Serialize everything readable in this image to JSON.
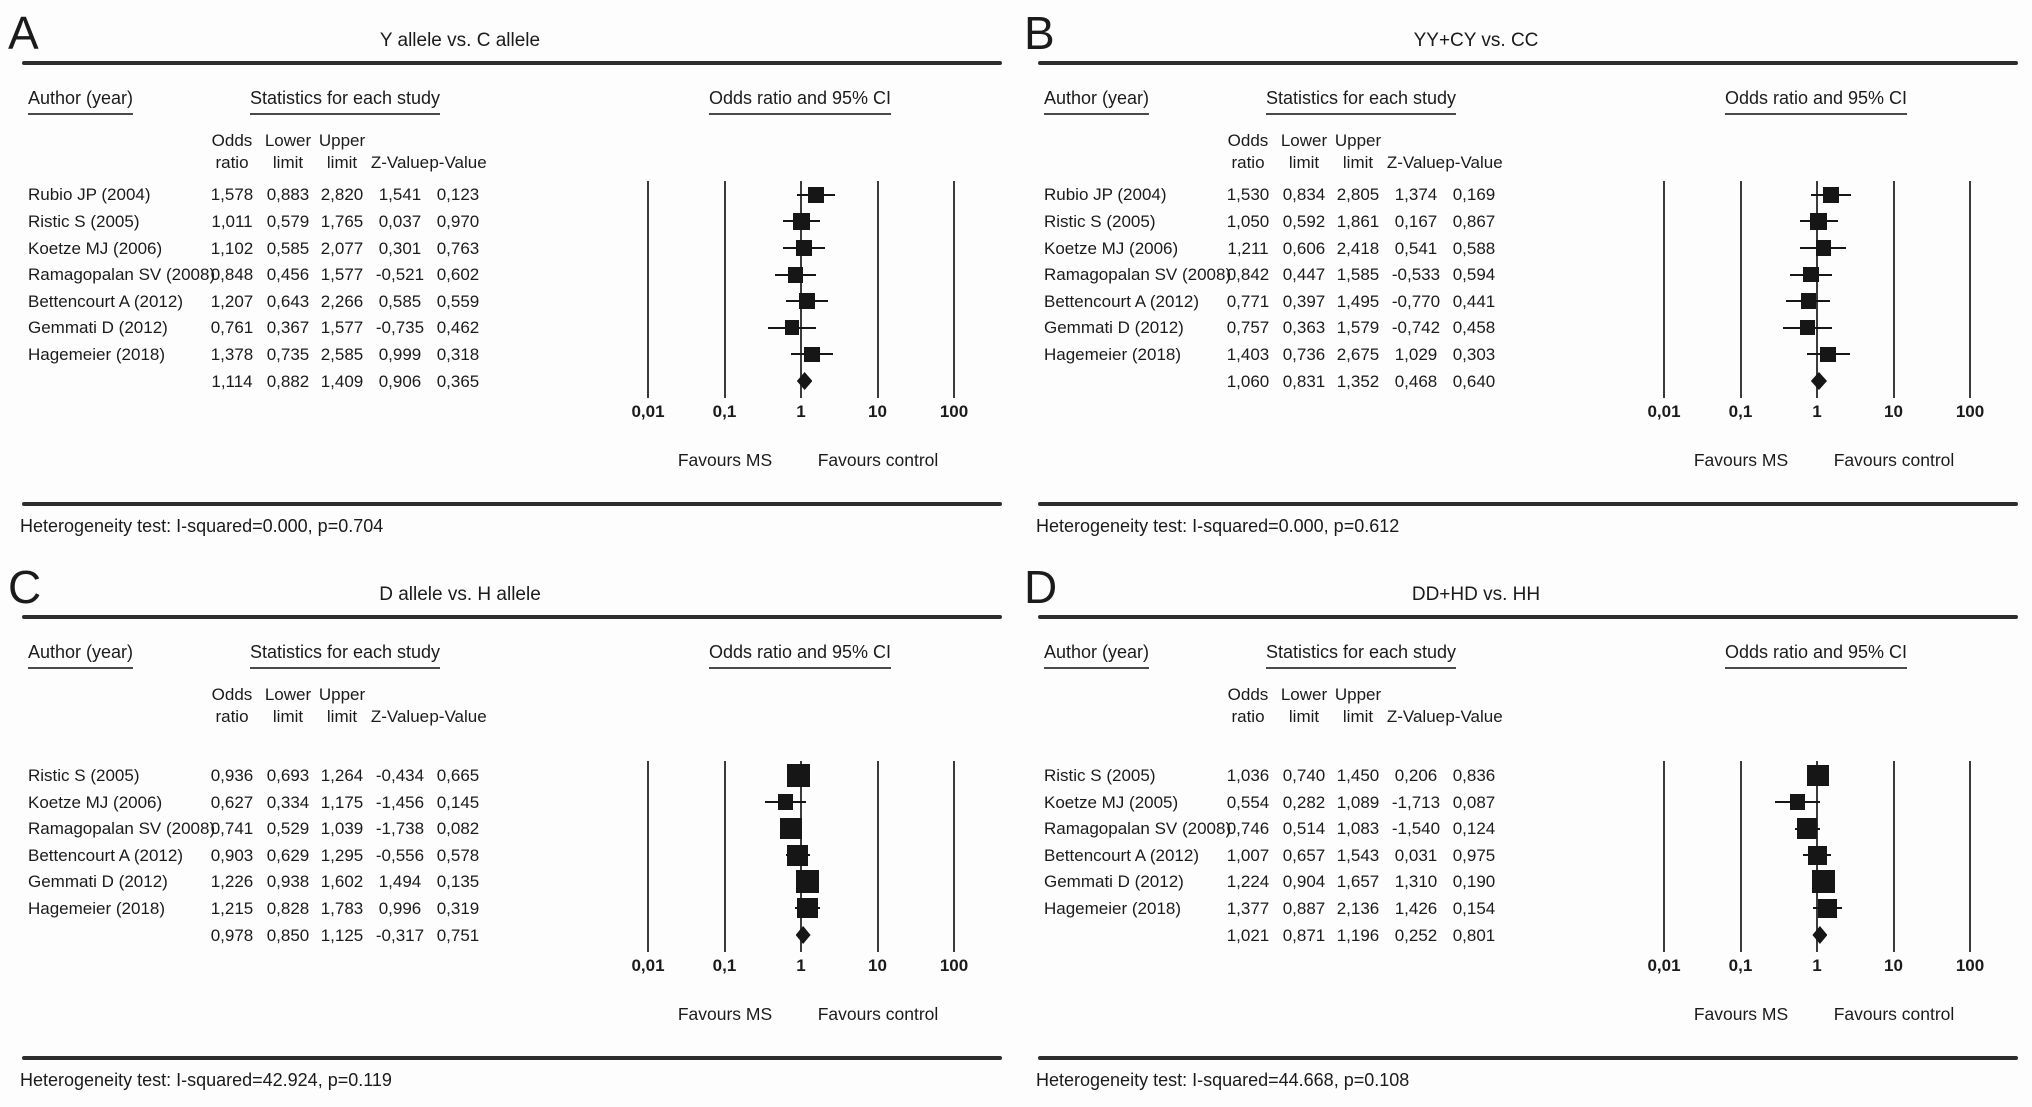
{
  "figure_labels": {
    "author_header": "Author (year)",
    "stats_header": "Statistics for each study",
    "or_ci_header": "Odds ratio and 95% CI",
    "col_headers": {
      "or": "Odds\nratio",
      "ll": "Lower\nlimit",
      "ul": "Upper\nlimit",
      "z": "Z-Value",
      "p": "p-Value"
    },
    "favours_left": "Favours MS",
    "favours_right": "Favours control"
  },
  "chart_data": [
    {
      "type": "forest",
      "panel_letter": "A",
      "title": "Y allele vs. C allele",
      "x_axis": {
        "scale": "log10",
        "tick_values": [
          0.01,
          0.1,
          1,
          10,
          100
        ],
        "tick_labels": [
          "0,01",
          "0,1",
          "1",
          "10",
          "100"
        ]
      },
      "rows": [
        {
          "author": "Rubio JP (2004)",
          "or": "1,578",
          "ll": "0,883",
          "ul": "2,820",
          "z": "1,541",
          "p": "0,123"
        },
        {
          "author": "Ristic S (2005)",
          "or": "1,011",
          "ll": "0,579",
          "ul": "1,765",
          "z": "0,037",
          "p": "0,970"
        },
        {
          "author": "Koetze MJ (2006)",
          "or": "1,102",
          "ll": "0,585",
          "ul": "2,077",
          "z": "0,301",
          "p": "0,763"
        },
        {
          "author": "Ramagopalan SV (2008)",
          "or": "0,848",
          "ll": "0,456",
          "ul": "1,577",
          "z": "-0,521",
          "p": "0,602"
        },
        {
          "author": "Bettencourt A (2012)",
          "or": "1,207",
          "ll": "0,643",
          "ul": "2,266",
          "z": "0,585",
          "p": "0,559"
        },
        {
          "author": "Gemmati D (2012)",
          "or": "0,761",
          "ll": "0,367",
          "ul": "1,577",
          "z": "-0,735",
          "p": "0,462"
        },
        {
          "author": "Hagemeier (2018)",
          "or": "1,378",
          "ll": "0,735",
          "ul": "2,585",
          "z": "0,999",
          "p": "0,318"
        }
      ],
      "summary": {
        "or": "1,114",
        "ll": "0,882",
        "ul": "1,409",
        "z": "0,906",
        "p": "0,365"
      },
      "heterogeneity": "Heterogeneity test: I-squared=0.000, p=0.704"
    },
    {
      "type": "forest",
      "panel_letter": "B",
      "title": "YY+CY vs. CC",
      "x_axis": {
        "scale": "log10",
        "tick_values": [
          0.01,
          0.1,
          1,
          10,
          100
        ],
        "tick_labels": [
          "0,01",
          "0,1",
          "1",
          "10",
          "100"
        ]
      },
      "rows": [
        {
          "author": "Rubio JP (2004)",
          "or": "1,530",
          "ll": "0,834",
          "ul": "2,805",
          "z": "1,374",
          "p": "0,169"
        },
        {
          "author": "Ristic S (2005)",
          "or": "1,050",
          "ll": "0,592",
          "ul": "1,861",
          "z": "0,167",
          "p": "0,867"
        },
        {
          "author": "Koetze MJ (2006)",
          "or": "1,211",
          "ll": "0,606",
          "ul": "2,418",
          "z": "0,541",
          "p": "0,588"
        },
        {
          "author": "Ramagopalan SV (2008)",
          "or": "0,842",
          "ll": "0,447",
          "ul": "1,585",
          "z": "-0,533",
          "p": "0,594"
        },
        {
          "author": "Bettencourt A (2012)",
          "or": "0,771",
          "ll": "0,397",
          "ul": "1,495",
          "z": "-0,770",
          "p": "0,441"
        },
        {
          "author": "Gemmati D (2012)",
          "or": "0,757",
          "ll": "0,363",
          "ul": "1,579",
          "z": "-0,742",
          "p": "0,458"
        },
        {
          "author": "Hagemeier (2018)",
          "or": "1,403",
          "ll": "0,736",
          "ul": "2,675",
          "z": "1,029",
          "p": "0,303"
        }
      ],
      "summary": {
        "or": "1,060",
        "ll": "0,831",
        "ul": "1,352",
        "z": "0,468",
        "p": "0,640"
      },
      "heterogeneity": "Heterogeneity test: I-squared=0.000, p=0.612"
    },
    {
      "type": "forest",
      "panel_letter": "C",
      "title": "D allele vs. H allele",
      "x_axis": {
        "scale": "log10",
        "tick_values": [
          0.01,
          0.1,
          1,
          10,
          100
        ],
        "tick_labels": [
          "0,01",
          "0,1",
          "1",
          "10",
          "100"
        ]
      },
      "rows": [
        {
          "author": "Ristic S (2005)",
          "or": "0,936",
          "ll": "0,693",
          "ul": "1,264",
          "z": "-0,434",
          "p": "0,665"
        },
        {
          "author": "Koetze MJ (2006)",
          "or": "0,627",
          "ll": "0,334",
          "ul": "1,175",
          "z": "-1,456",
          "p": "0,145"
        },
        {
          "author": "Ramagopalan SV (2008)",
          "or": "0,741",
          "ll": "0,529",
          "ul": "1,039",
          "z": "-1,738",
          "p": "0,082"
        },
        {
          "author": "Bettencourt A (2012)",
          "or": "0,903",
          "ll": "0,629",
          "ul": "1,295",
          "z": "-0,556",
          "p": "0,578"
        },
        {
          "author": "Gemmati D (2012)",
          "or": "1,226",
          "ll": "0,938",
          "ul": "1,602",
          "z": "1,494",
          "p": "0,135"
        },
        {
          "author": "Hagemeier (2018)",
          "or": "1,215",
          "ll": "0,828",
          "ul": "1,783",
          "z": "0,996",
          "p": "0,319"
        }
      ],
      "summary": {
        "or": "0,978",
        "ll": "0,850",
        "ul": "1,125",
        "z": "-0,317",
        "p": "0,751"
      },
      "heterogeneity": "Heterogeneity test: I-squared=42.924, p=0.119"
    },
    {
      "type": "forest",
      "panel_letter": "D",
      "title": "DD+HD vs. HH",
      "x_axis": {
        "scale": "log10",
        "tick_values": [
          0.01,
          0.1,
          1,
          10,
          100
        ],
        "tick_labels": [
          "0,01",
          "0,1",
          "1",
          "10",
          "100"
        ]
      },
      "rows": [
        {
          "author": "Ristic S (2005)",
          "or": "1,036",
          "ll": "0,740",
          "ul": "1,450",
          "z": "0,206",
          "p": "0,836"
        },
        {
          "author": "Koetze MJ (2005)",
          "or": "0,554",
          "ll": "0,282",
          "ul": "1,089",
          "z": "-1,713",
          "p": "0,087"
        },
        {
          "author": "Ramagopalan SV (2008)",
          "or": "0,746",
          "ll": "0,514",
          "ul": "1,083",
          "z": "-1,540",
          "p": "0,124"
        },
        {
          "author": "Bettencourt A (2012)",
          "or": "1,007",
          "ll": "0,657",
          "ul": "1,543",
          "z": "0,031",
          "p": "0,975"
        },
        {
          "author": "Gemmati D (2012)",
          "or": "1,224",
          "ll": "0,904",
          "ul": "1,657",
          "z": "1,310",
          "p": "0,190"
        },
        {
          "author": "Hagemeier (2018)",
          "or": "1,377",
          "ll": "0,887",
          "ul": "2,136",
          "z": "1,426",
          "p": "0,154"
        }
      ],
      "summary": {
        "or": "1,021",
        "ll": "0,871",
        "ul": "1,196",
        "z": "0,252",
        "p": "0,801"
      },
      "heterogeneity": "Heterogeneity test: I-squared=44.668, p=0.108"
    }
  ]
}
